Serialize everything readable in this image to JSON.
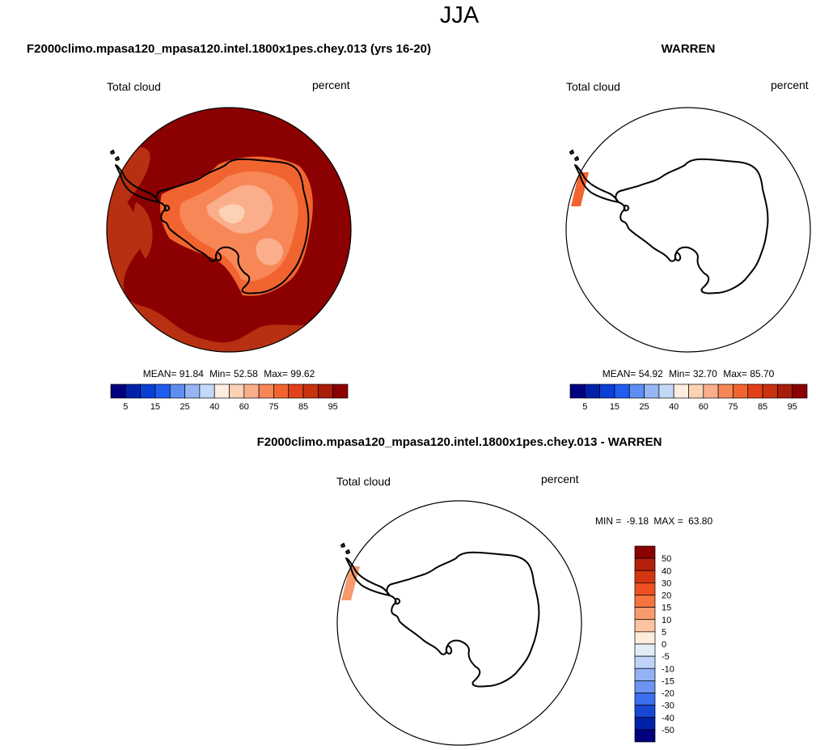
{
  "page": {
    "title": "JJA"
  },
  "panels": [
    {
      "id": "model",
      "heading": "F2000climo.mpasa120_mpasa120.intel.1800x1pes.chey.013 (yrs 16-20)",
      "variable": "Total cloud",
      "units": "percent",
      "stats": {
        "mean_label": "MEAN=",
        "mean": "91.84",
        "min_label": "Min=",
        "min": "52.58",
        "max_label": "Max=",
        "max": "99.62"
      },
      "field_description": "cloud fraction mostly 95-100% over the Southern Ocean, 85-95% band near the sea-ice edge, 40-75% over the Antarctic interior",
      "colorbar": {
        "orientation": "horizontal",
        "colors": [
          "#000080",
          "#0022aa",
          "#0a3fd6",
          "#1f5cf0",
          "#5f8ef2",
          "#95b5f5",
          "#c4d8f8",
          "#ffeee0",
          "#fcd2b6",
          "#fbae8c",
          "#f78757",
          "#f2642f",
          "#e2401a",
          "#c9310f",
          "#a81c0a",
          "#8b0000"
        ],
        "tick_labels": [
          "5",
          "15",
          "25",
          "40",
          "60",
          "75",
          "85",
          "95"
        ]
      }
    },
    {
      "id": "obs",
      "heading": "WARREN",
      "variable": "Total cloud",
      "units": "percent",
      "stats": {
        "mean_label": "MEAN=",
        "mean": "54.92",
        "min_label": "Min=",
        "min": "32.70",
        "max_label": "Max=",
        "max": "85.70"
      },
      "field_description": "data only in a small strip near the Antarctic Peninsula (about 60-85%), rest missing",
      "colorbar": {
        "orientation": "horizontal",
        "colors": [
          "#000080",
          "#0022aa",
          "#0a3fd6",
          "#1f5cf0",
          "#5f8ef2",
          "#95b5f5",
          "#c4d8f8",
          "#ffeee0",
          "#fcd2b6",
          "#fbae8c",
          "#f78757",
          "#f2642f",
          "#e2401a",
          "#c9310f",
          "#a81c0a",
          "#8b0000"
        ],
        "tick_labels": [
          "5",
          "15",
          "25",
          "40",
          "60",
          "75",
          "85",
          "95"
        ]
      }
    },
    {
      "id": "diff",
      "heading": "F2000climo.mpasa120_mpasa120.intel.1800x1pes.chey.013 - WARREN",
      "variable": "Total cloud",
      "units": "percent",
      "minmax": {
        "min_label": "MIN =",
        "min": "-9.18",
        "max_label": "MAX =",
        "max": "63.80"
      },
      "field_description": "positive difference (about 20-30%) in the strip near the Antarctic Peninsula, rest missing",
      "colorbar": {
        "orientation": "vertical",
        "colors": [
          "#8b0000",
          "#b3200c",
          "#d43510",
          "#ee5022",
          "#f6753f",
          "#f99a6e",
          "#fcc4a2",
          "#fdebdb",
          "#e1ecf9",
          "#c0d3f7",
          "#92b2f4",
          "#6b95f1",
          "#3c6ef0",
          "#1747d4",
          "#0022aa",
          "#000080"
        ],
        "tick_labels": [
          "50",
          "40",
          "30",
          "20",
          "15",
          "10",
          "5",
          "0",
          "-5",
          "-10",
          "-15",
          "-20",
          "-30",
          "-40",
          "-50"
        ]
      }
    }
  ],
  "colors": {
    "ocean_dominant": "#8b0000",
    "ice_edge_band": "#b83012",
    "interior_low": "#fbae8c",
    "strip_obs": "#f2642f",
    "strip_diff": "#f79a6e"
  }
}
